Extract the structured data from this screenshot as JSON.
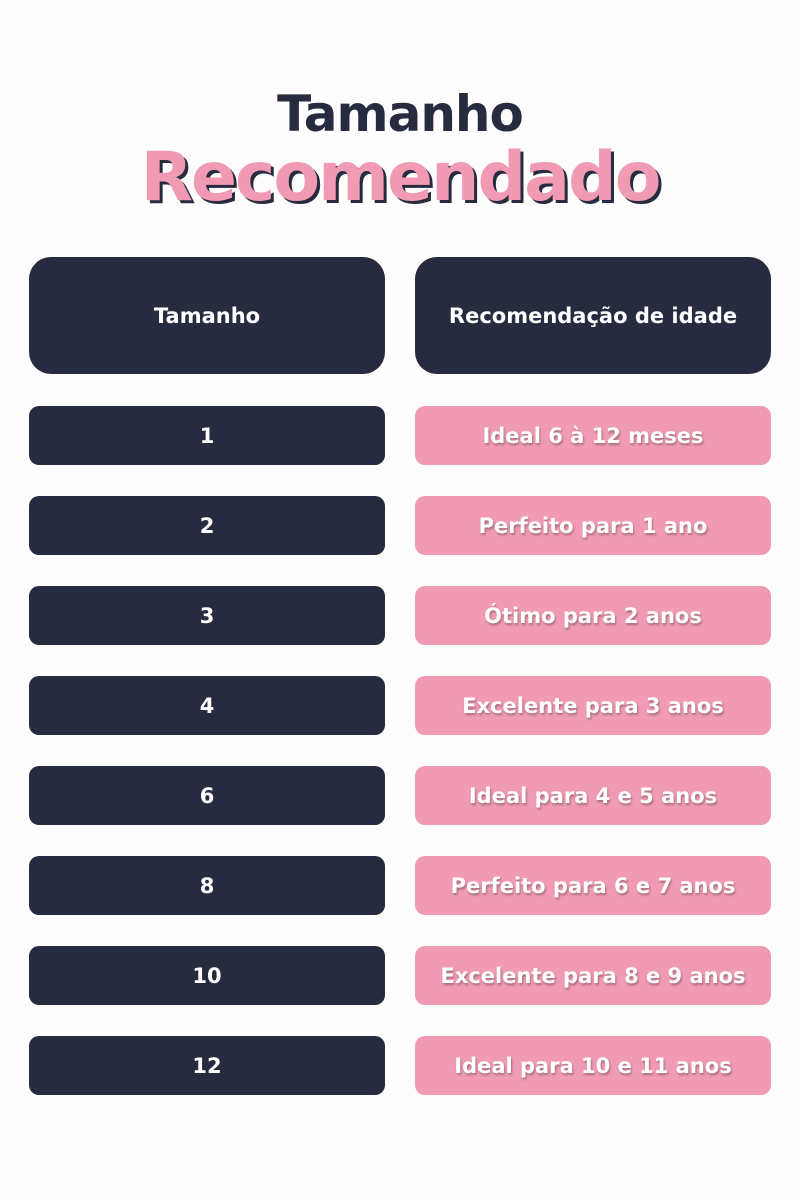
{
  "title": {
    "line1": "Tamanho",
    "line2": "Recomendado"
  },
  "colors": {
    "navy": "#272b40",
    "pink": "#f09bb3"
  },
  "table": {
    "headers": [
      "Tamanho",
      "Recomendação de idade"
    ],
    "rows": [
      {
        "size": "1",
        "age": "Ideal 6 à 12 meses"
      },
      {
        "size": "2",
        "age": "Perfeito para 1 ano"
      },
      {
        "size": "3",
        "age": "Ótimo para 2 anos"
      },
      {
        "size": "4",
        "age": "Excelente para 3 anos"
      },
      {
        "size": "6",
        "age": "Ideal para 4 e 5 anos"
      },
      {
        "size": "8",
        "age": "Perfeito para 6 e 7 anos"
      },
      {
        "size": "10",
        "age": "Excelente para 8 e 9 anos"
      },
      {
        "size": "12",
        "age": "Ideal para 10 e 11 anos"
      }
    ]
  }
}
